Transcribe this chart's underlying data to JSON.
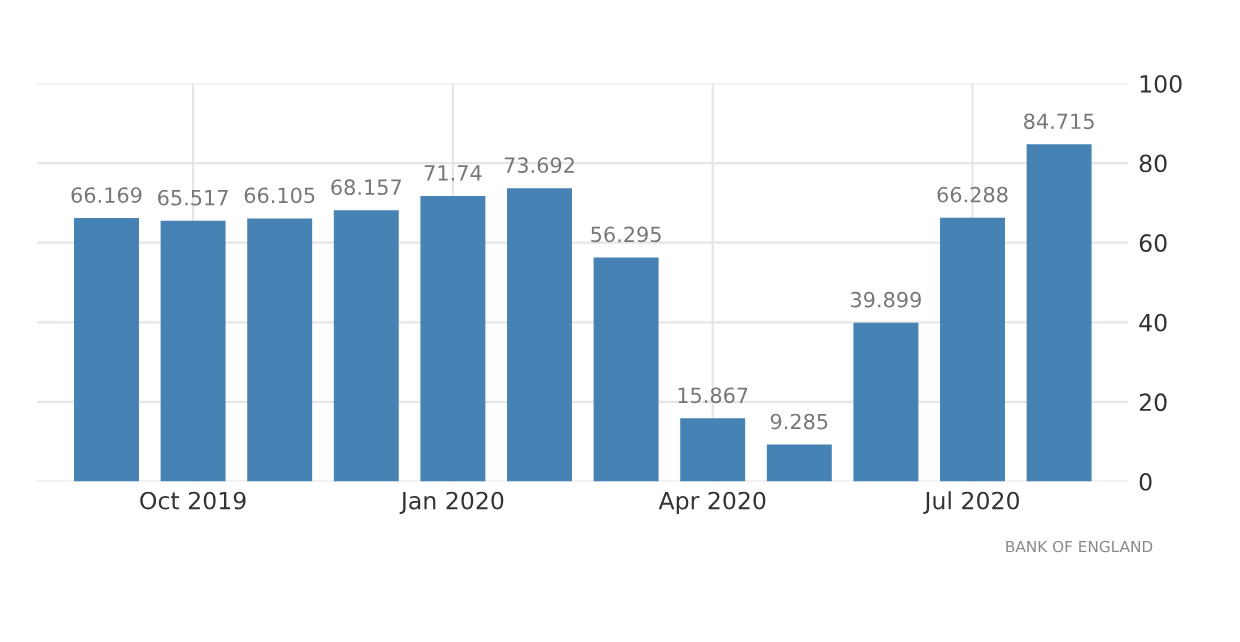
{
  "chart_data": {
    "type": "bar",
    "categories": [
      null,
      "Oct 2019",
      null,
      null,
      "Jan 2020",
      null,
      null,
      "Apr 2020",
      null,
      null,
      "Jul 2020",
      null
    ],
    "values": [
      66.169,
      65.517,
      66.105,
      68.157,
      71.74,
      73.692,
      56.295,
      15.867,
      9.285,
      39.899,
      66.288,
      84.715
    ],
    "color": "#4682b4",
    "ylim": [
      0,
      100
    ],
    "yticks": [
      0,
      20,
      40,
      60,
      80,
      100
    ],
    "grid": true,
    "data_labels": true,
    "annotations": [
      "BANK OF ENGLAND"
    ]
  }
}
